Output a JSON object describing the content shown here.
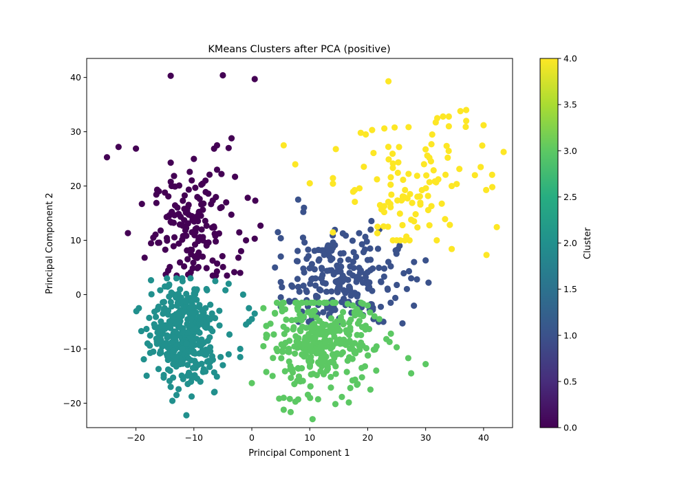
{
  "chart_data": {
    "type": "scatter",
    "title": "KMeans Clusters after PCA (positive)",
    "xlabel": "Principal Component 1",
    "ylabel": "Principal Component 2",
    "xlim": [
      -28.5,
      45
    ],
    "ylim": [
      -24.5,
      43.5
    ],
    "xticks": [
      -20,
      -10,
      0,
      10,
      20,
      30,
      40
    ],
    "yticks": [
      -20,
      -10,
      0,
      10,
      20,
      30,
      40
    ],
    "grid": false,
    "colormap": "viridis",
    "colorbar": {
      "label": "Cluster",
      "range": [
        0,
        4
      ],
      "ticks": [
        "0.0",
        "0.5",
        "1.0",
        "1.5",
        "2.0",
        "2.5",
        "3.0",
        "3.5",
        "4.0"
      ]
    },
    "clusters": [
      {
        "cluster": 0,
        "color": "#440154",
        "center": [
          -10,
          12
        ],
        "spread": [
          3.5,
          5
        ],
        "count": 150,
        "points": [
          [
            -25,
            25.3
          ],
          [
            -23,
            27.2
          ],
          [
            -20,
            26.9
          ],
          [
            -14,
            40.3
          ],
          [
            -5,
            40.4
          ],
          [
            0.5,
            39.7
          ],
          [
            -3.5,
            28.8
          ],
          [
            -6,
            27.5
          ],
          [
            -4,
            27
          ],
          [
            -14,
            24.3
          ],
          [
            -10,
            25
          ],
          [
            -8,
            21
          ],
          [
            -6,
            23
          ],
          [
            -1,
            10
          ],
          [
            1.5,
            12.7
          ],
          [
            -2,
            4
          ],
          [
            0.6,
            17.3
          ],
          [
            0.5,
            10.3
          ],
          [
            -18.5,
            6.8
          ],
          [
            -17,
            10.5
          ],
          [
            -15,
            18.8
          ]
        ]
      },
      {
        "cluster": 1,
        "color": "#3b528b",
        "center": [
          15,
          3
        ],
        "spread": [
          5,
          4.5
        ],
        "count": 220,
        "points": [
          [
            8,
            17.5
          ],
          [
            9,
            16
          ],
          [
            4.5,
            11.5
          ],
          [
            4,
            5
          ],
          [
            30.5,
            2.2
          ],
          [
            30,
            6.3
          ],
          [
            26,
            -5.3
          ],
          [
            25.5,
            9
          ],
          [
            27.5,
            3
          ],
          [
            28,
            6
          ],
          [
            28.5,
            2.8
          ],
          [
            21,
            -4.5
          ],
          [
            5,
            -0.5
          ]
        ]
      },
      {
        "cluster": 2,
        "color": "#21908d",
        "center": [
          -11.5,
          -7
        ],
        "spread": [
          2.8,
          4.5
        ],
        "count": 380,
        "points": [
          [
            -19.5,
            -2.5
          ],
          [
            -18,
            -9
          ],
          [
            -17,
            -10.5
          ],
          [
            -14,
            -17
          ],
          [
            -13,
            -18.5
          ],
          [
            -6.5,
            -18
          ],
          [
            -5,
            -13
          ],
          [
            -4,
            -11
          ],
          [
            -2,
            -10
          ],
          [
            -2,
            -11.5
          ],
          [
            -0.5,
            -2.5
          ],
          [
            -0.5,
            -5
          ],
          [
            0,
            -4.5
          ],
          [
            0.5,
            -3.5
          ],
          [
            -1,
            -5.5
          ],
          [
            -1.5,
            0
          ],
          [
            -4,
            2
          ],
          [
            -16,
            -6
          ],
          [
            -15,
            1.5
          ]
        ]
      },
      {
        "cluster": 3,
        "color": "#5cc863",
        "center": [
          12,
          -9
        ],
        "spread": [
          4.5,
          4.2
        ],
        "count": 320,
        "points": [
          [
            5.5,
            -21.2
          ],
          [
            5.5,
            -19
          ],
          [
            8,
            -19.3
          ],
          [
            0,
            -16.3
          ],
          [
            2,
            -9.5
          ],
          [
            2,
            -2.5
          ],
          [
            4,
            -3.5
          ],
          [
            30,
            -12.8
          ],
          [
            27.5,
            -14.5
          ],
          [
            27,
            -11.7
          ],
          [
            25,
            -9.7
          ],
          [
            24,
            -7.2
          ],
          [
            22,
            -4.5
          ],
          [
            20,
            -2
          ],
          [
            17,
            -17.2
          ]
        ]
      },
      {
        "cluster": 4,
        "color": "#fde725",
        "center": [
          26,
          20
        ],
        "spread": [
          6,
          6.5
        ],
        "count": 95,
        "points": [
          [
            5.5,
            27.5
          ],
          [
            7.5,
            24
          ],
          [
            10,
            20.5
          ],
          [
            14.5,
            26.8
          ],
          [
            18.8,
            29.8
          ],
          [
            32,
            32.5
          ],
          [
            33,
            32.8
          ],
          [
            34,
            32.8
          ],
          [
            36,
            33.8
          ],
          [
            37,
            34
          ],
          [
            37,
            32
          ],
          [
            40,
            31.2
          ],
          [
            41.5,
            19.8
          ],
          [
            40.5,
            7.3
          ],
          [
            34.5,
            8.4
          ],
          [
            31,
            16.3
          ],
          [
            31,
            27.7
          ],
          [
            34,
            31
          ],
          [
            34.5,
            20
          ],
          [
            38.5,
            22
          ],
          [
            39.5,
            23.5
          ],
          [
            25,
            10
          ],
          [
            23.5,
            12.5
          ],
          [
            26,
            12.8
          ],
          [
            27.5,
            13.8
          ],
          [
            28,
            13.5
          ]
        ]
      }
    ]
  }
}
